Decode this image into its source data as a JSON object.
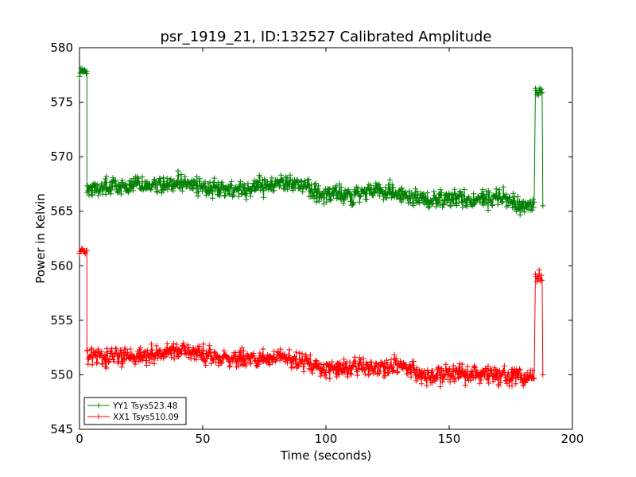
{
  "chart_data": {
    "type": "line",
    "title": "psr_1919_21, ID:132527 Calibrated Amplitude",
    "xlabel": "Time (seconds)",
    "ylabel": "Power in Kelvin",
    "xlim": [
      0,
      200
    ],
    "ylim": [
      545,
      580
    ],
    "xticks": [
      0,
      50,
      100,
      150,
      200
    ],
    "yticks": [
      545,
      550,
      555,
      560,
      565,
      570,
      575,
      580
    ],
    "grid": false,
    "legend_position": "bottom-left",
    "marker": "+",
    "series": [
      {
        "name": "YY1 Tsys523.48",
        "color": "#008000",
        "trend": [
          [
            3,
            567.0
          ],
          [
            10,
            567.3
          ],
          [
            20,
            567.4
          ],
          [
            30,
            567.5
          ],
          [
            40,
            567.6
          ],
          [
            50,
            567.2
          ],
          [
            60,
            566.9
          ],
          [
            70,
            567.2
          ],
          [
            80,
            567.6
          ],
          [
            90,
            567.4
          ],
          [
            100,
            566.6
          ],
          [
            110,
            566.5
          ],
          [
            120,
            567.0
          ],
          [
            130,
            566.6
          ],
          [
            140,
            566.0
          ],
          [
            150,
            566.4
          ],
          [
            160,
            565.9
          ],
          [
            170,
            566.3
          ],
          [
            180,
            565.4
          ],
          [
            184.5,
            565.8
          ]
        ],
        "noise": 0.8,
        "start_level": 577.8,
        "start_end_x": 3,
        "end_level": 576.0,
        "end_start_x": 185,
        "end_last_x": 188,
        "end_drop_value": 565.5
      },
      {
        "name": "XX1 Tsys510.09",
        "color": "#ff0000",
        "trend": [
          [
            3,
            551.5
          ],
          [
            10,
            551.8
          ],
          [
            20,
            551.6
          ],
          [
            30,
            551.9
          ],
          [
            40,
            552.2
          ],
          [
            50,
            551.9
          ],
          [
            60,
            551.6
          ],
          [
            70,
            551.4
          ],
          [
            80,
            551.6
          ],
          [
            90,
            551.3
          ],
          [
            100,
            550.4
          ],
          [
            110,
            550.7
          ],
          [
            120,
            550.6
          ],
          [
            130,
            550.9
          ],
          [
            140,
            549.9
          ],
          [
            150,
            550.2
          ],
          [
            160,
            550.1
          ],
          [
            170,
            549.9
          ],
          [
            180,
            549.7
          ],
          [
            184.5,
            549.8
          ]
        ],
        "noise": 0.8,
        "start_level": 561.3,
        "start_end_x": 3,
        "end_level": 559.0,
        "end_start_x": 185,
        "end_last_x": 188,
        "end_drop_value": 550.0
      }
    ]
  }
}
